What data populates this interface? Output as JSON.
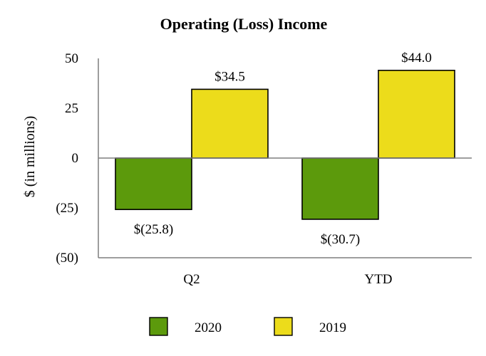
{
  "chart_data": {
    "type": "bar",
    "title": "Operating (Loss) Income",
    "xlabel": "",
    "ylabel": "$ (in millions)",
    "categories": [
      "Q2",
      "YTD"
    ],
    "ylim": [
      -50,
      50
    ],
    "yticks": [
      50,
      25,
      0,
      -25,
      -50
    ],
    "ytick_labels": [
      "50",
      "25",
      "0",
      "(25)",
      "(50)"
    ],
    "grid": false,
    "legend_position": "bottom",
    "series": [
      {
        "name": "2020",
        "color": "#5c9a0c",
        "values": [
          -25.8,
          -30.7
        ],
        "labels": [
          "$(25.8)",
          "$(30.7)"
        ]
      },
      {
        "name": "2019",
        "color": "#ecdc1b",
        "values": [
          34.5,
          44.0
        ],
        "labels": [
          "$34.5",
          "$44.0"
        ]
      }
    ]
  }
}
